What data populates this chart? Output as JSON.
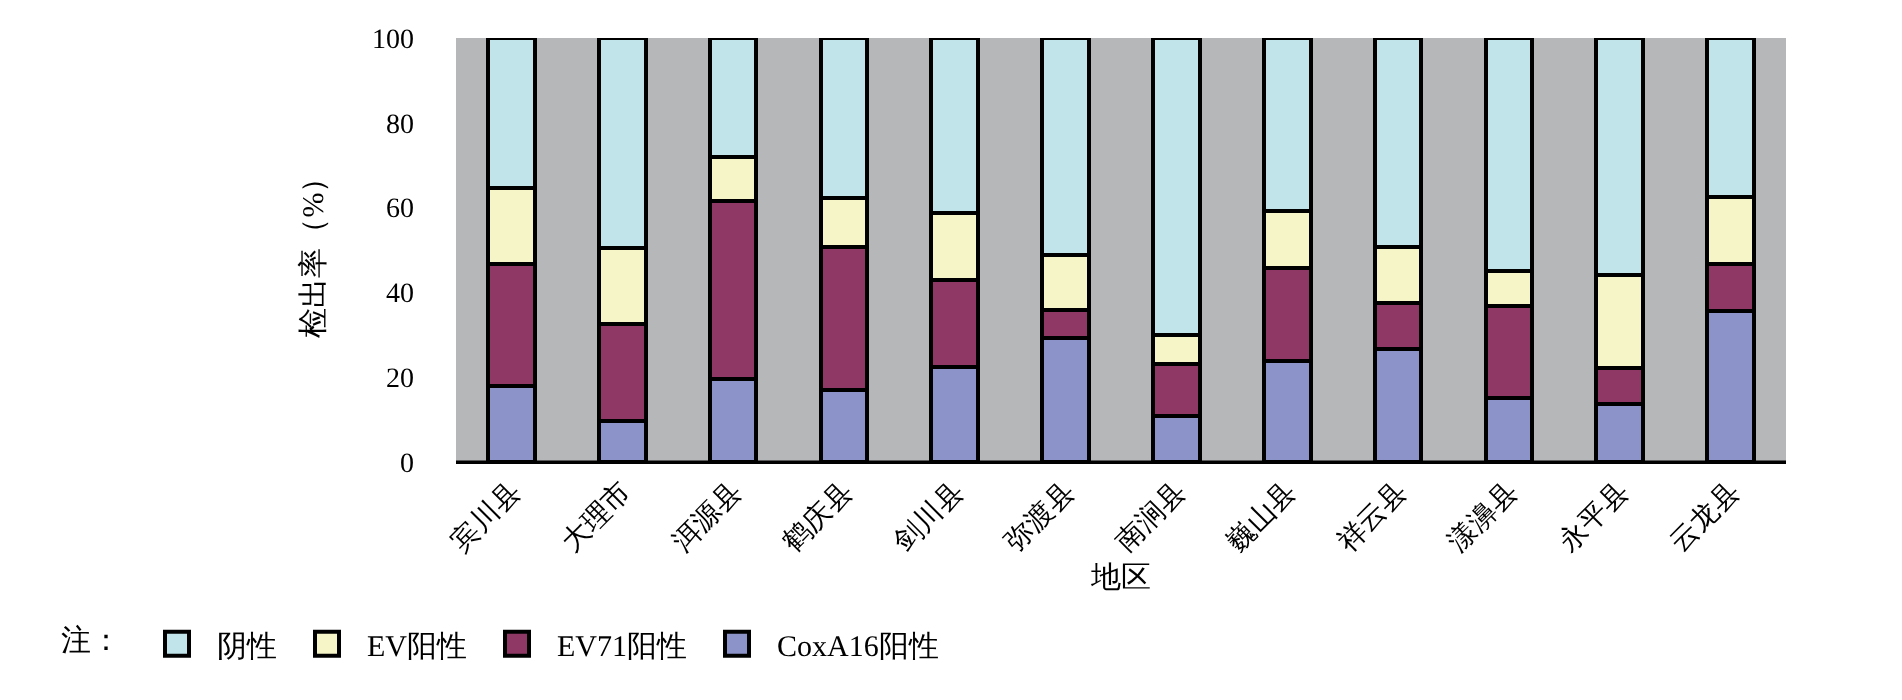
{
  "chart_data": {
    "type": "bar",
    "stacked": true,
    "xlabel": "地区",
    "ylabel": "检出率（%）",
    "legend_title": "注：",
    "categories": [
      "宾川县",
      "大理市",
      "洱源县",
      "鹤庆县",
      "剑川县",
      "弥渡县",
      "南涧县",
      "巍山县",
      "祥云县",
      "漾濞县",
      "永平县",
      "云龙县"
    ],
    "series": [
      {
        "name": "CoxA16阳性",
        "color": "#8b93c8",
        "values": [
          18.0,
          9.6,
          19.5,
          17.1,
          22.3,
          29.2,
          10.8,
          23.8,
          26.7,
          15.0,
          13.6,
          35.6
        ]
      },
      {
        "name": "EV71阳性",
        "color": "#8f3865",
        "values": [
          28.7,
          22.9,
          42.0,
          33.7,
          20.6,
          6.7,
          12.3,
          22.0,
          10.7,
          21.8,
          8.5,
          11.0
        ]
      },
      {
        "name": "EV阳性",
        "color": "#f5f5c8",
        "values": [
          17.9,
          18.0,
          10.4,
          11.5,
          15.9,
          13.0,
          6.8,
          13.4,
          13.3,
          8.2,
          21.9,
          16.0
        ]
      },
      {
        "name": "阴性",
        "color": "#c0e4ea",
        "values": [
          35.4,
          49.5,
          28.1,
          37.7,
          41.2,
          51.1,
          70.1,
          40.8,
          49.3,
          55.0,
          56.0,
          37.4
        ]
      }
    ],
    "ylim": [
      0,
      100
    ],
    "yticks": [
      0,
      20,
      40,
      60,
      80,
      100
    ],
    "grid": false,
    "legend": "bottom"
  }
}
